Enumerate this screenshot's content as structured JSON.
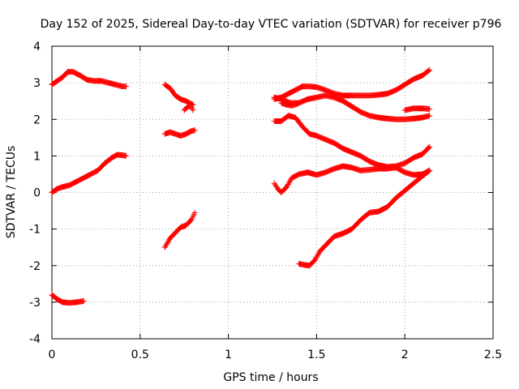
{
  "chart_data": {
    "type": "scatter",
    "title": "Day 152 of 2025, Sidereal Day-to-day VTEC variation (SDTVAR) for receiver p796",
    "xlabel": "GPS time / hours",
    "ylabel": "SDTVAR / TECUs",
    "xlim": [
      0,
      2.5
    ],
    "ylim": [
      -4,
      4
    ],
    "xticks": [
      0,
      0.5,
      1,
      1.5,
      2,
      2.5
    ],
    "xtick_labels": [
      "0",
      "0.5",
      "1",
      "1.5",
      "2",
      "2.5"
    ],
    "yticks": [
      -4,
      -3,
      -2,
      -1,
      0,
      1,
      2,
      3,
      4
    ],
    "ytick_labels": [
      "-4",
      "-3",
      "-2",
      "-1",
      "0",
      "1",
      "2",
      "3",
      "4"
    ],
    "grid": true,
    "marker": "plus",
    "color": "#ff0000",
    "series": [
      {
        "name": "arc-1",
        "x": [
          0,
          0.03,
          0.06,
          0.09,
          0.12,
          0.16,
          0.2,
          0.24,
          0.28,
          0.32,
          0.36,
          0.4,
          0.42
        ],
        "y": [
          2.95,
          3.05,
          3.15,
          3.3,
          3.3,
          3.2,
          3.08,
          3.05,
          3.05,
          3.0,
          2.95,
          2.9,
          2.9
        ]
      },
      {
        "name": "arc-2",
        "x": [
          0,
          0.03,
          0.06,
          0.1,
          0.14,
          0.18,
          0.22,
          0.26,
          0.3,
          0.34,
          0.37,
          0.4,
          0.42
        ],
        "y": [
          0.0,
          0.1,
          0.15,
          0.2,
          0.3,
          0.4,
          0.5,
          0.6,
          0.8,
          0.95,
          1.03,
          1.02,
          1.0
        ]
      },
      {
        "name": "arc-3",
        "x": [
          0,
          0.03,
          0.06,
          0.1,
          0.14,
          0.18
        ],
        "y": [
          -2.8,
          -2.92,
          -3.0,
          -3.02,
          -3.0,
          -2.97
        ]
      },
      {
        "name": "arc-4",
        "x": [
          0.64,
          0.67,
          0.7,
          0.73,
          0.76,
          0.78,
          0.8
        ],
        "y": [
          2.95,
          2.85,
          2.65,
          2.55,
          2.5,
          2.45,
          2.4
        ]
      },
      {
        "name": "arc-5",
        "x": [
          0.75,
          0.77,
          0.79,
          0.8
        ],
        "y": [
          2.25,
          2.35,
          2.35,
          2.25
        ]
      },
      {
        "name": "arc-6",
        "x": [
          0.64,
          0.67,
          0.7,
          0.73,
          0.76,
          0.79,
          0.81
        ],
        "y": [
          1.6,
          1.65,
          1.6,
          1.55,
          1.6,
          1.68,
          1.7
        ]
      },
      {
        "name": "arc-7",
        "x": [
          0.64,
          0.67,
          0.7,
          0.73,
          0.76,
          0.79,
          0.81
        ],
        "y": [
          -1.5,
          -1.25,
          -1.1,
          -0.95,
          -0.9,
          -0.75,
          -0.55
        ]
      },
      {
        "name": "arc-8",
        "x": [
          1.26,
          1.3,
          1.34,
          1.38,
          1.42,
          1.46,
          1.5,
          1.55,
          1.6,
          1.65,
          1.7,
          1.75,
          1.8,
          1.85,
          1.9,
          1.95,
          2.0,
          2.05,
          2.1,
          2.14
        ],
        "y": [
          2.55,
          2.6,
          2.7,
          2.8,
          2.9,
          2.9,
          2.88,
          2.8,
          2.7,
          2.65,
          2.65,
          2.65,
          2.65,
          2.67,
          2.7,
          2.8,
          2.95,
          3.1,
          3.2,
          3.35
        ]
      },
      {
        "name": "arc-9",
        "x": [
          1.26,
          1.3,
          1.35,
          1.4,
          1.45,
          1.5,
          1.55,
          1.6,
          1.65,
          1.7,
          1.75,
          1.8,
          1.85,
          1.9,
          1.95,
          2.0,
          2.05,
          2.1,
          2.14
        ],
        "y": [
          2.6,
          2.55,
          2.45,
          2.45,
          2.55,
          2.6,
          2.65,
          2.6,
          2.5,
          2.35,
          2.2,
          2.1,
          2.05,
          2.02,
          2.0,
          2.0,
          2.02,
          2.05,
          2.1
        ]
      },
      {
        "name": "arc-10",
        "x": [
          1.3,
          1.33,
          1.36,
          1.38,
          1.4
        ],
        "y": [
          2.45,
          2.4,
          2.38,
          2.4,
          2.45
        ]
      },
      {
        "name": "arc-11",
        "x": [
          2.0,
          2.05,
          2.1,
          2.14
        ],
        "y": [
          2.25,
          2.3,
          2.3,
          2.28
        ]
      },
      {
        "name": "arc-12",
        "x": [
          1.26,
          1.3,
          1.34,
          1.38,
          1.42,
          1.46,
          1.5,
          1.55,
          1.6,
          1.65,
          1.7,
          1.75,
          1.8,
          1.85,
          1.9,
          1.95,
          2.0,
          2.05,
          2.1,
          2.14
        ],
        "y": [
          1.95,
          1.95,
          2.1,
          2.05,
          1.8,
          1.6,
          1.55,
          1.45,
          1.35,
          1.2,
          1.1,
          1.0,
          0.85,
          0.75,
          0.7,
          0.72,
          0.8,
          0.95,
          1.05,
          1.25
        ]
      },
      {
        "name": "arc-13",
        "x": [
          1.26,
          1.28,
          1.3,
          1.33,
          1.36,
          1.4,
          1.45,
          1.5,
          1.55,
          1.6,
          1.65,
          1.7,
          1.75,
          1.8,
          1.85,
          1.9,
          1.95,
          2.0,
          2.05,
          2.1,
          2.14
        ],
        "y": [
          0.25,
          0.1,
          0.0,
          0.15,
          0.4,
          0.5,
          0.55,
          0.48,
          0.55,
          0.65,
          0.72,
          0.68,
          0.6,
          0.62,
          0.65,
          0.65,
          0.68,
          0.55,
          0.48,
          0.5,
          0.6
        ]
      },
      {
        "name": "arc-14",
        "x": [
          1.4,
          1.43,
          1.46,
          1.49,
          1.52,
          1.55,
          1.6,
          1.65,
          1.7,
          1.75,
          1.8,
          1.85,
          1.9,
          1.95,
          2.0,
          2.05,
          2.1,
          2.14
        ],
        "y": [
          -1.95,
          -1.98,
          -2.0,
          -1.85,
          -1.6,
          -1.45,
          -1.2,
          -1.12,
          -1.0,
          -0.75,
          -0.55,
          -0.52,
          -0.4,
          -0.15,
          0.05,
          0.25,
          0.45,
          0.6
        ]
      }
    ]
  }
}
